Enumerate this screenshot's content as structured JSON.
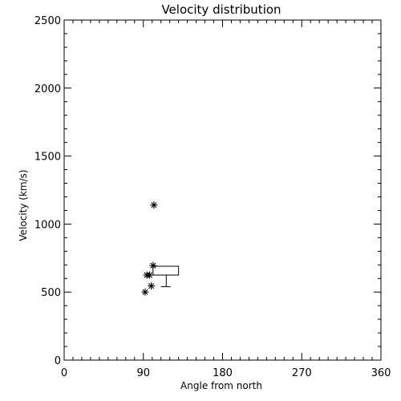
{
  "chart_data": {
    "type": "scatter",
    "title": "Velocity distribution",
    "xlabel": "Angle from north",
    "ylabel": "Velocity (km/s)",
    "xlim": [
      0,
      360
    ],
    "ylim": [
      0,
      2500
    ],
    "xticks": [
      0,
      90,
      180,
      270,
      360
    ],
    "yticks": [
      0,
      500,
      1000,
      1500,
      2000,
      2500
    ],
    "x_tick_labels": [
      "0",
      "90",
      "180",
      "270",
      "360"
    ],
    "y_tick_labels": [
      "0",
      "500",
      "1000",
      "1500",
      "2000",
      "2500"
    ],
    "x_minor_step": 10,
    "y_minor_step": 100,
    "grid": false,
    "points": [
      {
        "x": 92,
        "y": 500
      },
      {
        "x": 94,
        "y": 625
      },
      {
        "x": 97,
        "y": 625
      },
      {
        "x": 99,
        "y": 545
      },
      {
        "x": 101,
        "y": 695
      },
      {
        "x": 102,
        "y": 1140
      }
    ],
    "box": {
      "x_start": 101,
      "x_end": 130,
      "y_low": 625,
      "y_high": 690,
      "whisker_x": 116,
      "whisker_min": 540,
      "cap_x_start": 110,
      "cap_x_end": 121
    }
  }
}
